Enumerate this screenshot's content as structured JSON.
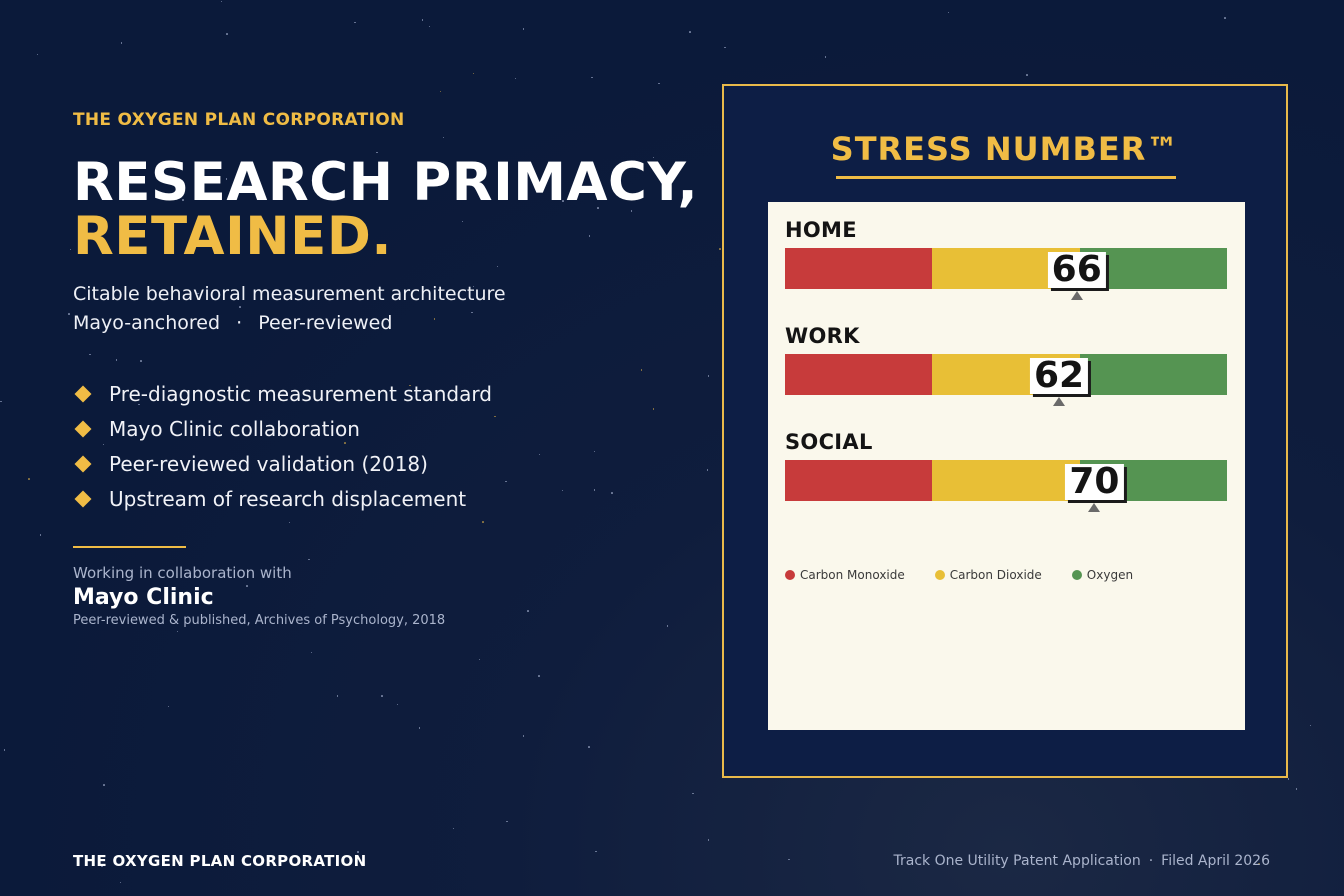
{
  "left": {
    "eyebrow": "THE OXYGEN PLAN CORPORATION",
    "headline_line1": "RESEARCH PRIMACY,",
    "headline_line2": "RETAINED.",
    "subtitle_line1": "Citable behavioral measurement architecture",
    "subtitle_line2_a": "Mayo-anchored",
    "subtitle_line2_sep": "·",
    "subtitle_line2_b": "Peer-reviewed",
    "bullets": [
      "Pre-diagnostic measurement standard",
      "Mayo Clinic collaboration",
      "Peer-reviewed validation (2018)",
      "Upstream of research displacement"
    ],
    "collab_intro": "Working in collaboration with",
    "collab_name": "Mayo Clinic",
    "collab_note": "Peer-reviewed & published, Archives of Psychology, 2018"
  },
  "panel": {
    "title": "STRESS NUMBER™",
    "gauge_range": [
      0,
      100
    ],
    "zones": [
      {
        "name": "Carbon Monoxide",
        "from": 0,
        "to": 33.3,
        "color": "#c73b3b"
      },
      {
        "name": "Carbon Dioxide",
        "from": 33.3,
        "to": 66.7,
        "color": "#e8bf36"
      },
      {
        "name": "Oxygen",
        "from": 66.7,
        "to": 100,
        "color": "#559452"
      }
    ],
    "gauges": [
      {
        "label": "HOME",
        "value": 66
      },
      {
        "label": "WORK",
        "value": 62
      },
      {
        "label": "SOCIAL",
        "value": 70
      }
    ],
    "legend": [
      "Carbon Monoxide",
      "Carbon Dioxide",
      "Oxygen"
    ]
  },
  "footer": {
    "left": "THE OXYGEN PLAN CORPORATION",
    "right_a": "Track One Utility Patent Application",
    "right_sep": "·",
    "right_b": "Filed April 2026"
  }
}
